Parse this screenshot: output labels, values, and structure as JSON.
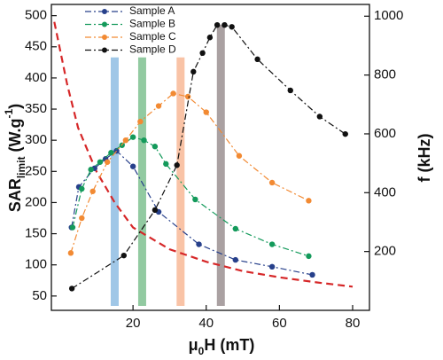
{
  "chart_data": {
    "type": "line",
    "xlabel": {
      "main": "μ",
      "sub": "0",
      "rest": "H (mT)"
    },
    "ylabel": {
      "main": "SAR",
      "sub": "limit",
      "unit": " (W.g",
      "sup": "-1",
      "close": ")"
    },
    "y2label": "f (kHz)",
    "xlim": [
      -2.3,
      84.6
    ],
    "xticks": [
      20,
      40,
      60,
      80
    ],
    "ylim": [
      27,
      518
    ],
    "yticks": [
      50,
      100,
      150,
      200,
      250,
      300,
      350,
      400,
      450,
      500
    ],
    "y2lim": [
      0,
      1040
    ],
    "y2ticks": [
      200,
      400,
      600,
      800,
      1000
    ],
    "legend": "upper-left",
    "bands": [
      {
        "x": 15,
        "top": 433,
        "color": "#8fbde3"
      },
      {
        "x": 22.5,
        "top": 433,
        "color": "#7fc191"
      },
      {
        "x": 33,
        "top": 433,
        "color": "#f8b996"
      },
      {
        "x": 44,
        "top": 485,
        "color": "#9b9092"
      }
    ],
    "series": [
      {
        "name": "Sample A",
        "color": "#27408b",
        "x": [
          3.2,
          5.2,
          9.5,
          12.5,
          15.5,
          20,
          27,
          38,
          48,
          58,
          69
        ],
        "values": [
          160,
          225,
          255,
          270,
          283,
          258,
          185,
          133,
          108,
          97,
          84
        ]
      },
      {
        "name": "Sample B",
        "color": "#149a5b",
        "x": [
          3.5,
          6,
          8.5,
          11,
          14,
          17,
          20,
          23,
          26,
          29,
          37,
          48,
          58,
          68
        ],
        "values": [
          160,
          222,
          253,
          265,
          280,
          292,
          305,
          300,
          290,
          262,
          205,
          158,
          133,
          114
        ]
      },
      {
        "name": "Sample C",
        "color": "#f28a33",
        "x": [
          3,
          6,
          9,
          13,
          18,
          22,
          27,
          31,
          35,
          40,
          49,
          58,
          68
        ],
        "values": [
          119,
          175,
          218,
          265,
          300,
          330,
          355,
          375,
          370,
          345,
          275,
          232,
          203
        ]
      },
      {
        "name": "Sample D",
        "color": "#111111",
        "x": [
          3.3,
          17.5,
          26,
          32,
          36.5,
          39,
          41,
          43,
          45,
          47,
          54,
          63,
          71,
          78
        ],
        "values": [
          62,
          115,
          188,
          260,
          410,
          440,
          465,
          485,
          485,
          482,
          430,
          380,
          338,
          310
        ]
      }
    ],
    "limit_curve": {
      "color": "#d62728",
      "x": [
        -1.5,
        2,
        5,
        10,
        15,
        20,
        30,
        40,
        50,
        60,
        70,
        80
      ],
      "values": [
        490,
        390,
        320,
        250,
        200,
        160,
        125,
        105,
        90,
        80,
        72,
        65
      ]
    }
  }
}
